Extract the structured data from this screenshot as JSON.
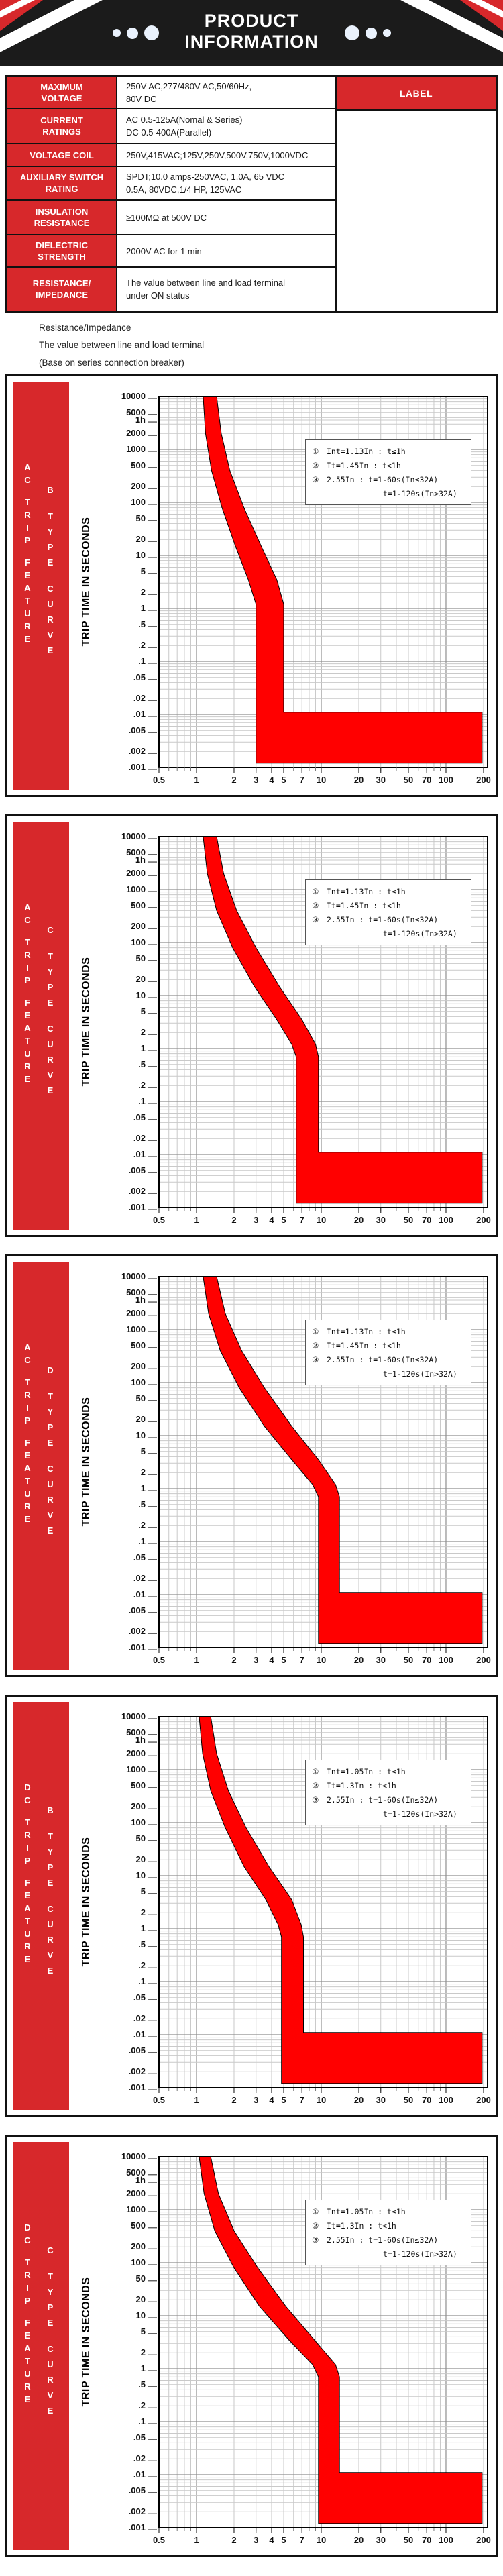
{
  "header": {
    "title_line1": "PRODUCT",
    "title_line2": "INFORMATION"
  },
  "table": {
    "rows": [
      {
        "label_lines": [
          "MAXIMUM",
          "VOLTAGE"
        ],
        "value_lines": [
          "250V AC,277/480V AC,50/60Hz,",
          "80V DC"
        ]
      },
      {
        "label_lines": [
          "CURRENT",
          "RATINGS"
        ],
        "value_lines": [
          "AC 0.5-125A(Nomal & Series)",
          "DC 0.5-400A(Parallel)"
        ]
      },
      {
        "label_lines": [
          "VOLTAGE COIL"
        ],
        "value_lines": [
          "250V,415VAC;125V,250V,500V,750V,1000VDC"
        ]
      },
      {
        "label_lines": [
          "AUXILIARY SWITCH",
          "RATING"
        ],
        "value_lines": [
          "SPDT;10.0 amps-250VAC, 1.0A, 65 VDC",
          "0.5A, 80VDC,1/4 HP, 125VAC"
        ]
      },
      {
        "label_lines": [
          "INSULATION",
          "RESISTANCE"
        ],
        "value_lines": [
          "≥100MΩ at 500V DC"
        ]
      },
      {
        "label_lines": [
          "DIELECTRIC",
          "STRENGTH"
        ],
        "value_lines": [
          "2000V AC for 1 min"
        ]
      },
      {
        "label_lines": [
          "RESISTANCE/",
          "IMPEDANCE"
        ],
        "value_lines": [
          "The value between line and load terminal",
          "under ON status"
        ]
      }
    ],
    "right_label": "LABEL"
  },
  "notes": {
    "lines": [
      "Resistance/Impedance",
      "The value between line and load terminal",
      "(Base on series connection breaker)"
    ]
  },
  "colors": {
    "accent_red": "#d7282b",
    "chart_band_red": "#ff0000",
    "header_black": "#1b1b1b",
    "grid_minor": "#c9c9c9",
    "grid_major": "#8f8f8f"
  },
  "chart_common": {
    "ylabel": "TRIP TIME IN SECONDS",
    "x_range": [
      0.5,
      200
    ],
    "y_range": [
      0.001,
      10000
    ],
    "x_scale": "log",
    "y_scale": "log",
    "grid": true,
    "y_ticks": [
      {
        "label": "10000",
        "value": 10000
      },
      {
        "label": "5000",
        "value": 5000
      },
      {
        "label": "1h",
        "value": 3600
      },
      {
        "label": "2000",
        "value": 2000
      },
      {
        "label": "1000",
        "value": 1000
      },
      {
        "label": "500",
        "value": 500
      },
      {
        "label": "200",
        "value": 200
      },
      {
        "label": "100",
        "value": 100
      },
      {
        "label": "50",
        "value": 50
      },
      {
        "label": "20",
        "value": 20
      },
      {
        "label": "10",
        "value": 10
      },
      {
        "label": "5",
        "value": 5
      },
      {
        "label": "2",
        "value": 2
      },
      {
        "label": "1",
        "value": 1
      },
      {
        "label": ".5",
        "value": 0.5
      },
      {
        "label": ".2",
        "value": 0.2
      },
      {
        "label": ".1",
        "value": 0.1
      },
      {
        "label": ".05",
        "value": 0.05
      },
      {
        "label": ".02",
        "value": 0.02
      },
      {
        "label": ".01",
        "value": 0.01
      },
      {
        "label": ".005",
        "value": 0.005
      },
      {
        "label": ".002",
        "value": 0.002
      },
      {
        "label": ".001",
        "value": 0.001
      }
    ],
    "x_ticks": [
      {
        "label": "0.5",
        "value": 0.5
      },
      {
        "label": "1",
        "value": 1
      },
      {
        "label": "2",
        "value": 2
      },
      {
        "label": "3",
        "value": 3
      },
      {
        "label": "4",
        "value": 4
      },
      {
        "label": "5",
        "value": 5
      },
      {
        "label": "7",
        "value": 7
      },
      {
        "label": "10",
        "value": 10
      },
      {
        "label": "20",
        "value": 20
      },
      {
        "label": "30",
        "value": 30
      },
      {
        "label": "50",
        "value": 50
      },
      {
        "label": "70",
        "value": 70
      },
      {
        "label": "100",
        "value": 100
      },
      {
        "label": "200",
        "value": 200
      }
    ]
  },
  "chart_data": [
    {
      "type": "area",
      "title": "AC TRIP FEATURE - B TYPE CURVE",
      "feature_words": [
        "AC",
        "TRIP",
        "FEATURE"
      ],
      "curve_words": [
        "B",
        "TYPE",
        "CURVE"
      ],
      "legend": [
        {
          "bullet": "①",
          "text": "Int=1.13In : t≤1h"
        },
        {
          "bullet": "②",
          "text": "It=1.45In : t<1h"
        },
        {
          "bullet": "③",
          "text": "2.55In : t=1-60s(In≤32A)"
        },
        {
          "bullet": "",
          "text": "t=1-120s(In>32A)"
        }
      ],
      "band": {
        "left_curve": [
          [
            1.13,
            10000
          ],
          [
            1.18,
            2000
          ],
          [
            1.32,
            400
          ],
          [
            1.6,
            80
          ],
          [
            2.05,
            15
          ],
          [
            2.6,
            3.5
          ],
          [
            3,
            1.2
          ],
          [
            3,
            0.0012
          ]
        ],
        "right_curve": [
          [
            1.45,
            10000
          ],
          [
            1.58,
            2000
          ],
          [
            1.85,
            400
          ],
          [
            2.4,
            80
          ],
          [
            3.3,
            15
          ],
          [
            4.4,
            3.5
          ],
          [
            5,
            1.2
          ],
          [
            5,
            0.011
          ]
        ],
        "inst_trip_range": [
          3,
          5
        ],
        "rect_x_max": 195,
        "rect_t_top": 0.011,
        "t_bottom": 0.0012
      }
    },
    {
      "type": "area",
      "title": "AC TRIP FEATURE - C TYPE CURVE",
      "feature_words": [
        "AC",
        "TRIP",
        "FEATURE"
      ],
      "curve_words": [
        "C",
        "TYPE",
        "CURVE"
      ],
      "legend": [
        {
          "bullet": "①",
          "text": "Int=1.13In : t≤1h"
        },
        {
          "bullet": "②",
          "text": "It=1.45In : t<1h"
        },
        {
          "bullet": "③",
          "text": "2.55In : t=1-60s(In≤32A)"
        },
        {
          "bullet": "",
          "text": "t=1-120s(In>32A)"
        }
      ],
      "band": {
        "left_curve": [
          [
            1.13,
            10000
          ],
          [
            1.22,
            2000
          ],
          [
            1.45,
            400
          ],
          [
            1.95,
            80
          ],
          [
            2.9,
            15
          ],
          [
            4.4,
            3.5
          ],
          [
            5.8,
            1.2
          ],
          [
            6.3,
            0.7
          ],
          [
            6.3,
            0.0012
          ]
        ],
        "right_curve": [
          [
            1.45,
            10000
          ],
          [
            1.65,
            2000
          ],
          [
            2.1,
            400
          ],
          [
            3.0,
            80
          ],
          [
            4.6,
            15
          ],
          [
            7.0,
            3.5
          ],
          [
            9.0,
            1.2
          ],
          [
            9.5,
            0.7
          ],
          [
            9.5,
            0.011
          ]
        ],
        "inst_trip_range": [
          6.3,
          9.5
        ],
        "rect_x_max": 195,
        "rect_t_top": 0.011,
        "t_bottom": 0.0012
      }
    },
    {
      "type": "area",
      "title": "AC TRIP FEATURE - D TYPE CURVE",
      "feature_words": [
        "AC",
        "TRIP",
        "FEATURE"
      ],
      "curve_words": [
        "D",
        "TYPE",
        "CURVE"
      ],
      "legend": [
        {
          "bullet": "①",
          "text": "Int=1.13In : t≤1h"
        },
        {
          "bullet": "②",
          "text": "It=1.45In : t<1h"
        },
        {
          "bullet": "③",
          "text": "2.55In : t=1-60s(In≤32A)"
        },
        {
          "bullet": "",
          "text": "t=1-120s(In>32A)"
        }
      ],
      "band": {
        "left_curve": [
          [
            1.13,
            10000
          ],
          [
            1.25,
            2000
          ],
          [
            1.55,
            400
          ],
          [
            2.2,
            80
          ],
          [
            3.5,
            15
          ],
          [
            5.8,
            3.5
          ],
          [
            8.5,
            1.2
          ],
          [
            9.5,
            0.7
          ],
          [
            9.5,
            0.0012
          ]
        ],
        "right_curve": [
          [
            1.45,
            10000
          ],
          [
            1.7,
            2000
          ],
          [
            2.3,
            400
          ],
          [
            3.5,
            80
          ],
          [
            5.8,
            15
          ],
          [
            9.5,
            3.5
          ],
          [
            13,
            1.2
          ],
          [
            14,
            0.7
          ],
          [
            14,
            0.011
          ]
        ],
        "inst_trip_range": [
          9.5,
          14
        ],
        "rect_x_max": 195,
        "rect_t_top": 0.011,
        "t_bottom": 0.0012
      }
    },
    {
      "type": "area",
      "title": "DC TRIP FEATURE - B TYPE CURVE",
      "feature_words": [
        "DC",
        "TRIP",
        "FEATURE"
      ],
      "curve_words": [
        "B",
        "TYPE",
        "CURVE"
      ],
      "legend": [
        {
          "bullet": "①",
          "text": "Int=1.05In : t≤1h"
        },
        {
          "bullet": "②",
          "text": "It=1.3In : t<1h"
        },
        {
          "bullet": "③",
          "text": "2.55In : t=1-60s(In≤32A)"
        },
        {
          "bullet": "",
          "text": "t=1-120s(In>32A)"
        }
      ],
      "band": {
        "left_curve": [
          [
            1.05,
            10000
          ],
          [
            1.12,
            2000
          ],
          [
            1.3,
            400
          ],
          [
            1.7,
            80
          ],
          [
            2.4,
            15
          ],
          [
            3.6,
            3.5
          ],
          [
            4.5,
            1.2
          ],
          [
            4.8,
            0.7
          ],
          [
            4.8,
            0.0012
          ]
        ],
        "right_curve": [
          [
            1.3,
            10000
          ],
          [
            1.45,
            2000
          ],
          [
            1.8,
            400
          ],
          [
            2.5,
            80
          ],
          [
            3.8,
            15
          ],
          [
            5.8,
            3.5
          ],
          [
            6.9,
            1.2
          ],
          [
            7.2,
            0.7
          ],
          [
            7.2,
            0.011
          ]
        ],
        "inst_trip_range": [
          4.8,
          7.2
        ],
        "rect_x_max": 195,
        "rect_t_top": 0.011,
        "t_bottom": 0.0012
      }
    },
    {
      "type": "area",
      "title": "DC TRIP FEATURE - C TYPE CURVE",
      "feature_words": [
        "DC",
        "TRIP",
        "FEATURE"
      ],
      "curve_words": [
        "C",
        "TYPE",
        "CURVE"
      ],
      "legend": [
        {
          "bullet": "①",
          "text": "Int=1.05In : t≤1h"
        },
        {
          "bullet": "②",
          "text": "It=1.3In : t<1h"
        },
        {
          "bullet": "③",
          "text": "2.55In : t=1-60s(In≤32A)"
        },
        {
          "bullet": "",
          "text": "t=1-120s(In>32A)"
        }
      ],
      "band": {
        "left_curve": [
          [
            1.05,
            10000
          ],
          [
            1.15,
            2000
          ],
          [
            1.4,
            400
          ],
          [
            2.0,
            80
          ],
          [
            3.2,
            15
          ],
          [
            5.5,
            3.5
          ],
          [
            8.5,
            1.2
          ],
          [
            9.5,
            0.7
          ],
          [
            9.5,
            0.0012
          ]
        ],
        "right_curve": [
          [
            1.3,
            10000
          ],
          [
            1.5,
            2000
          ],
          [
            2.0,
            400
          ],
          [
            3.1,
            80
          ],
          [
            5.2,
            15
          ],
          [
            8.8,
            3.5
          ],
          [
            13,
            1.2
          ],
          [
            14,
            0.7
          ],
          [
            14,
            0.011
          ]
        ],
        "inst_trip_range": [
          9.5,
          14
        ],
        "rect_x_max": 195,
        "rect_t_top": 0.011,
        "t_bottom": 0.0012
      }
    }
  ]
}
